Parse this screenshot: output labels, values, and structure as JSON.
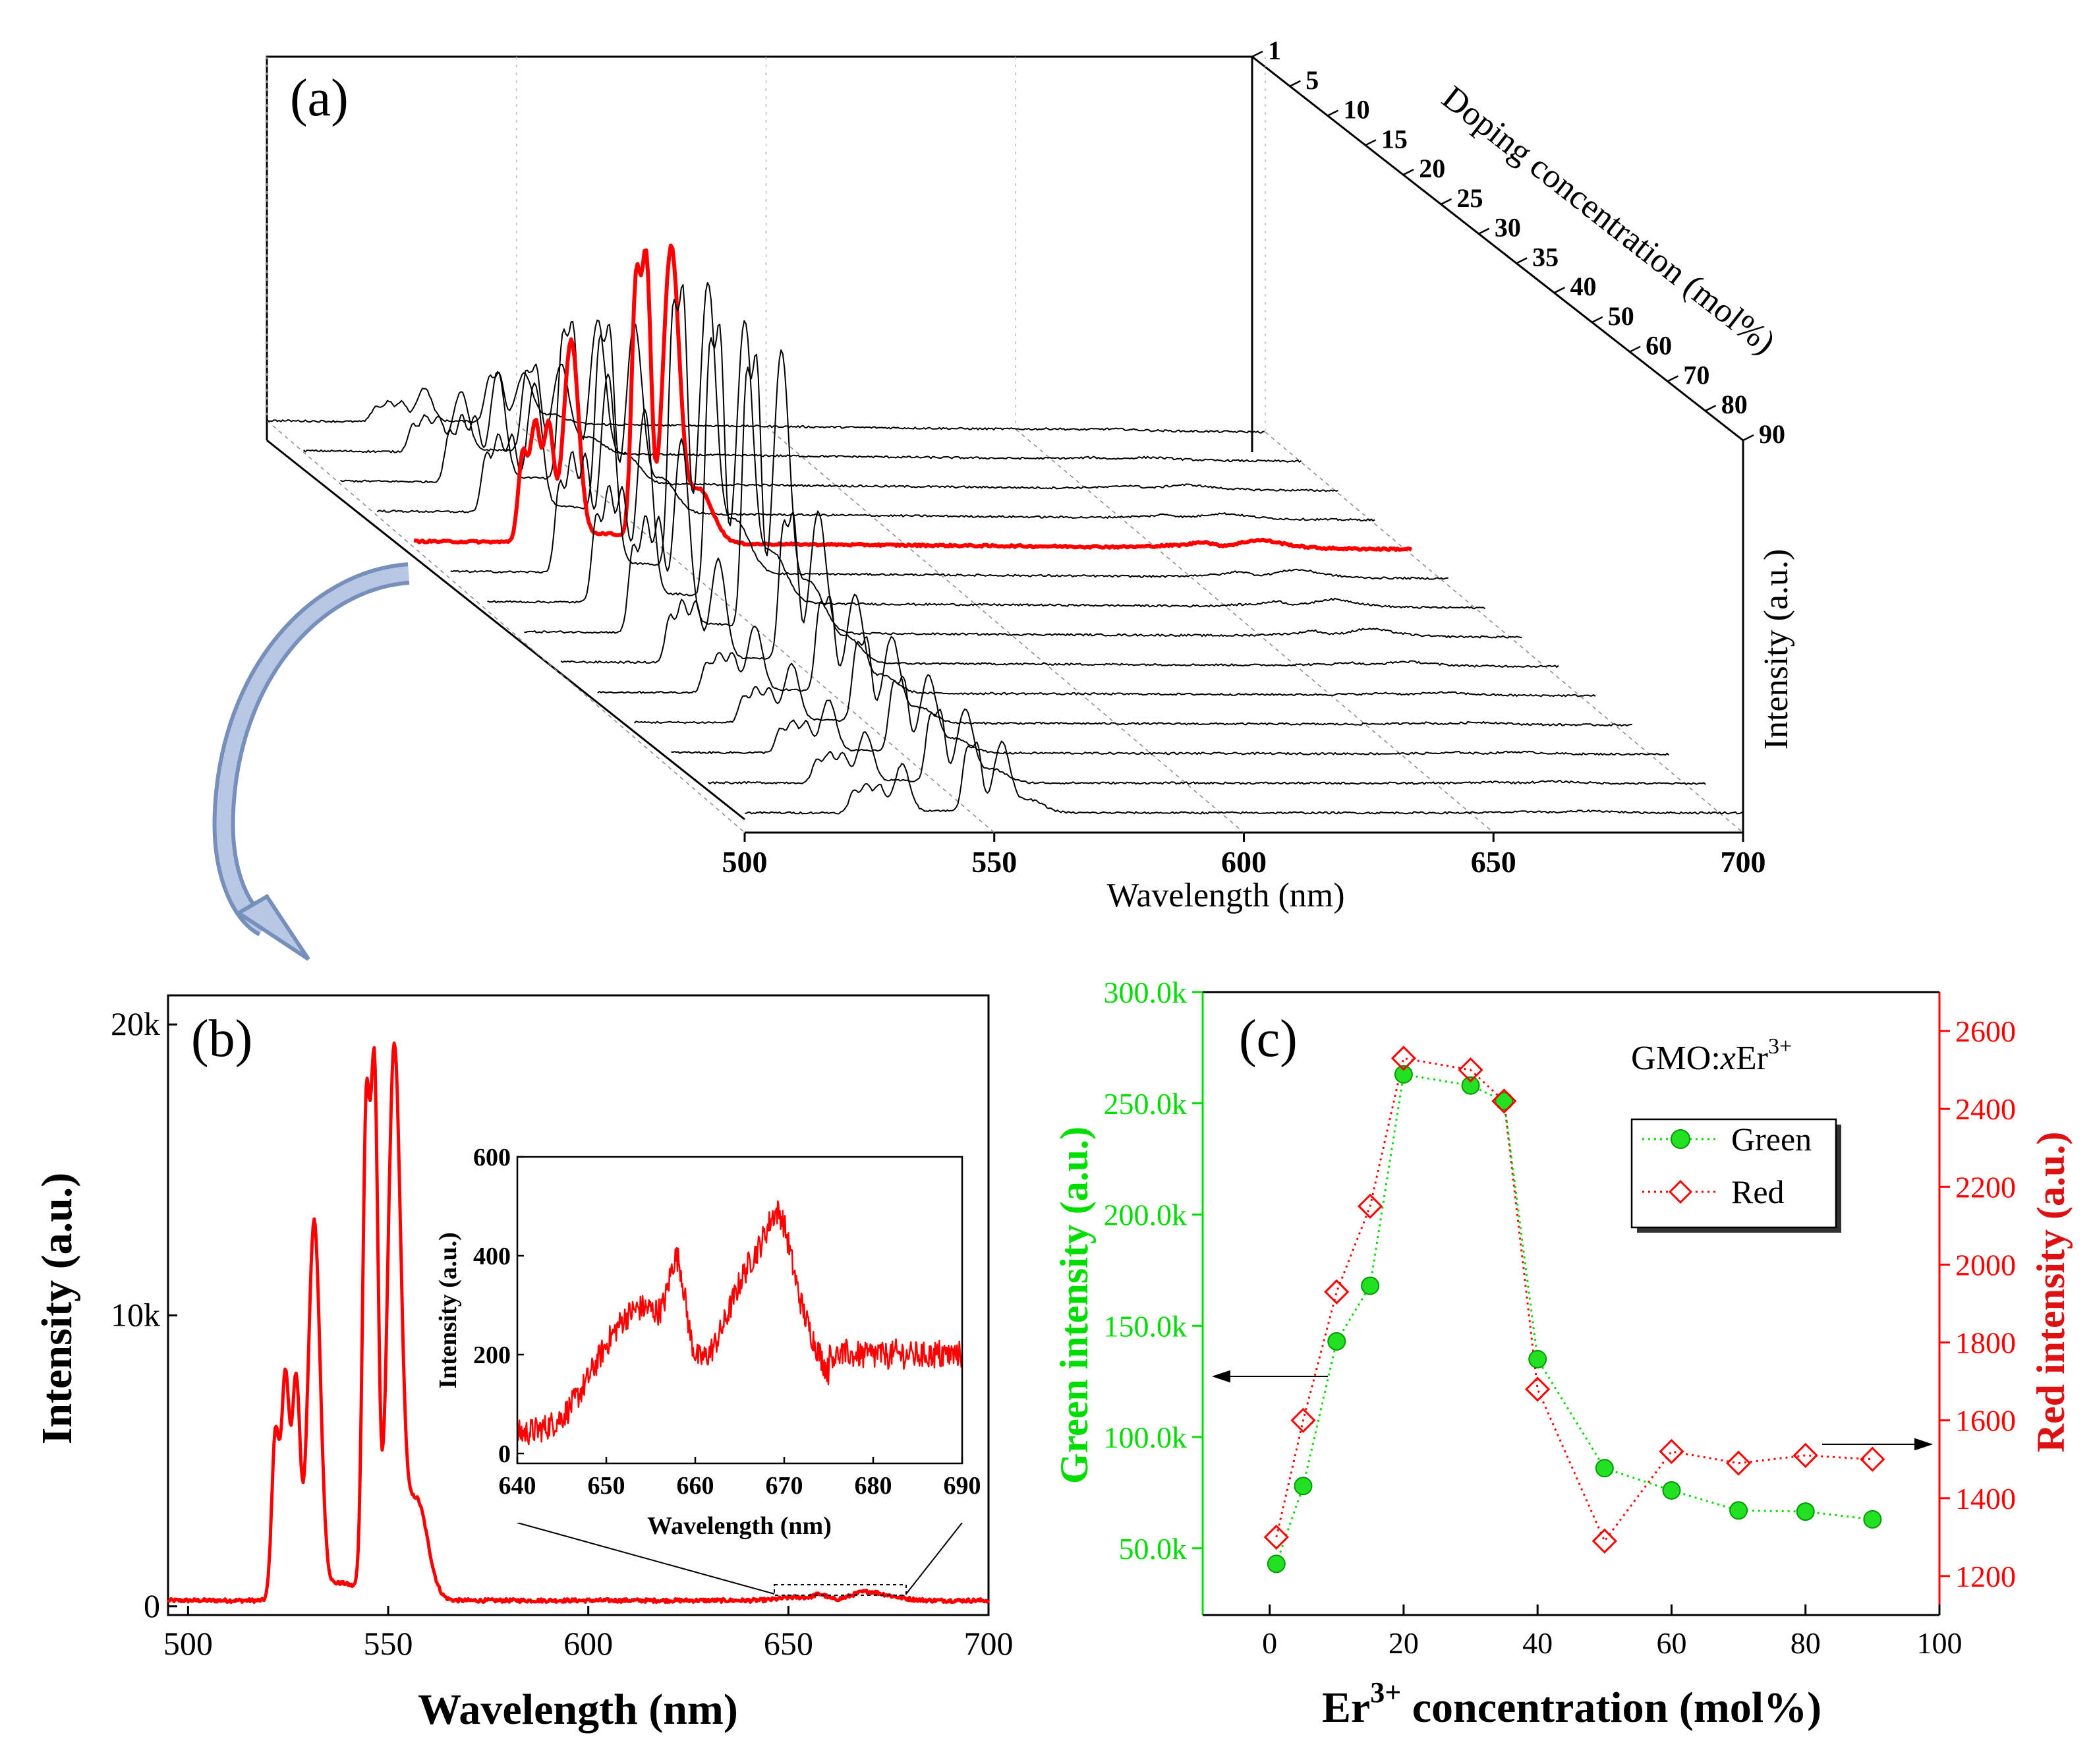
{
  "chart_data": [
    {
      "panel": "(a)",
      "type": "line",
      "subtype": "3d-waterfall",
      "xlabel": "Wavelength (nm)",
      "ylabel": "Intensity (a.u.)",
      "zlabel": "Doping concentration (mol%)",
      "xlim": [
        500,
        700
      ],
      "xticks": [
        "500",
        "550",
        "600",
        "650",
        "700"
      ],
      "doping_ticks": [
        "1",
        "5",
        "10",
        "15",
        "20",
        "25",
        "30",
        "35",
        "40",
        "50",
        "60",
        "70",
        "80",
        "90"
      ],
      "highlighted_concentration": "20",
      "highlight_color": "#ff0000",
      "series_color": "#000000",
      "relative_green_intensity": [
        0.17,
        0.3,
        0.55,
        0.64,
        1.0,
        0.98,
        0.95,
        0.95,
        0.51,
        0.33,
        0.29,
        0.26,
        0.25,
        0.24
      ]
    },
    {
      "panel": "(b)",
      "type": "line",
      "xlabel": "Wavelength (nm)",
      "ylabel": "Intensity (a.u.)",
      "xlim": [
        495,
        700
      ],
      "ylim": [
        -300,
        21000
      ],
      "xticks": [
        "500",
        "550",
        "600",
        "650",
        "700"
      ],
      "yticks": [
        "0",
        "10k",
        "20k"
      ],
      "color": "#ff0000",
      "peaks": [
        {
          "x": 522,
          "y": 6000
        },
        {
          "x": 524.5,
          "y": 8200
        },
        {
          "x": 527,
          "y": 8000
        },
        {
          "x": 531.5,
          "y": 13500
        },
        {
          "x": 544.5,
          "y": 16800
        },
        {
          "x": 546.5,
          "y": 18000
        },
        {
          "x": 552,
          "y": 19400
        },
        {
          "x": 658,
          "y": 380
        },
        {
          "x": 669,
          "y": 460
        }
      ],
      "inset": {
        "xlabel": "Wavelength (nm)",
        "ylabel": "Intensity (a.u.)",
        "xlim": [
          640,
          690
        ],
        "ylim": [
          -20,
          600
        ],
        "xticks": [
          "640",
          "650",
          "660",
          "670",
          "680",
          "690"
        ],
        "yticks": [
          "0",
          "200",
          "400",
          "600"
        ],
        "color": "#ff0000"
      }
    },
    {
      "panel": "(c)",
      "type": "scatter",
      "xlabel_main": "Er",
      "xlabel_sup": "3+",
      "xlabel_rest": " concentration (mol%)",
      "ylabel_left": "Green intensity (a.u.)",
      "ylabel_right": "Red intensity (a.u.)",
      "xlim": [
        -10,
        100
      ],
      "ylim_left": [
        20000,
        300000
      ],
      "ylim_right": [
        1100,
        2700
      ],
      "xticks": [
        "0",
        "20",
        "40",
        "60",
        "80",
        "100"
      ],
      "yticks_left": [
        "50.0k",
        "100.0k",
        "150.0k",
        "200.0k",
        "250.0k",
        "300.0k"
      ],
      "yticks_right": [
        "1200",
        "1400",
        "1600",
        "1800",
        "2000",
        "2200",
        "2400",
        "2600"
      ],
      "annotation_main": "GMO:",
      "annotation_italic": "x",
      "annotation_ion": "Er",
      "annotation_sup": "3+",
      "x": [
        1,
        5,
        10,
        15,
        20,
        30,
        35,
        40,
        50,
        60,
        70,
        80,
        90
      ],
      "series": [
        {
          "name": "Green",
          "axis": "left",
          "color": "#00dd00",
          "values": [
            43000,
            78000,
            143000,
            168000,
            263000,
            258000,
            251000,
            135000,
            86000,
            76000,
            67000,
            66500,
            63000
          ]
        },
        {
          "name": "Red",
          "axis": "right",
          "color": "#ff0000",
          "values": [
            1300,
            1600,
            1930,
            2150,
            2530,
            2500,
            2420,
            1680,
            1290,
            1520,
            1490,
            1510,
            1500
          ]
        }
      ]
    }
  ]
}
